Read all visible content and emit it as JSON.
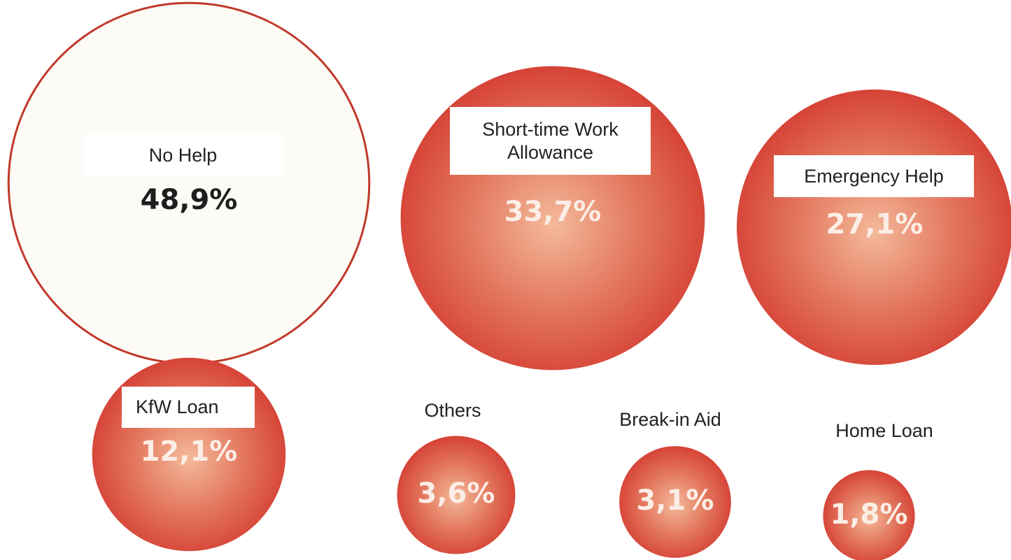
{
  "chart_data": {
    "type": "bubble",
    "categories": [
      "No Help",
      "Short-time Work Allowance",
      "Emergency Help",
      "KfW Loan",
      "Others",
      "Break-in Aid",
      "Home Loan"
    ],
    "values": [
      48.9,
      33.7,
      27.1,
      12.1,
      3.6,
      3.1,
      1.8
    ],
    "value_labels": [
      "48,9%",
      "33,7%",
      "27,1%",
      "12,1%",
      "3,6%",
      "3,1%",
      "1,8%"
    ],
    "colors": [
      "#fdfbf5",
      "#d43c32",
      "#d43c32",
      "#d43c32",
      "#d43c32",
      "#d43c32",
      "#d43c32"
    ]
  }
}
